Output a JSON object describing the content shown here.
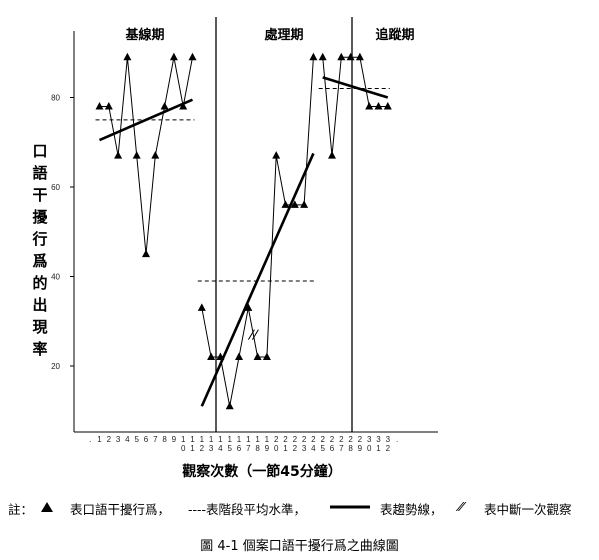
{
  "chart_data": {
    "type": "line",
    "title": "",
    "ylabel": "口語干擾行爲的出現率",
    "xlabel": "觀察次數（一節45分鐘）",
    "ylim": [
      0,
      100
    ],
    "y_ticks": [
      20,
      40,
      60,
      80
    ],
    "phases": [
      {
        "name": "基線期",
        "x": [
          1,
          2,
          3,
          4,
          5,
          6,
          7,
          8,
          9,
          10,
          11
        ],
        "tick_labels": [
          ".",
          "1",
          "2",
          "3",
          "4",
          "5",
          "6",
          "7",
          "8",
          "9",
          "1\n0",
          "1\n1"
        ],
        "y": [
          78,
          78,
          67,
          89,
          67,
          45,
          67,
          78,
          89,
          78,
          89
        ],
        "mean": 75,
        "trend": [
          70.5,
          79.5
        ]
      },
      {
        "name": "處理期",
        "x": [
          12,
          13,
          14,
          15,
          16,
          17,
          18,
          19,
          20,
          21,
          22,
          23,
          24
        ],
        "tick_labels": [
          "1\n2",
          "1\n3",
          "1\n4",
          "1\n5",
          "1\n6",
          "1\n7",
          "1\n8",
          "1\n9",
          "2\n0",
          "2\n1",
          "2\n2",
          "2\n3",
          "2\n4"
        ],
        "y": [
          33,
          22,
          22,
          11,
          22,
          33,
          22,
          22,
          67,
          56,
          56,
          56,
          89
        ],
        "mean": 39,
        "trend": [
          11,
          67.5
        ],
        "break_after_x": 17
      },
      {
        "name": "追蹤期",
        "x": [
          25,
          26,
          27,
          28,
          29,
          30,
          31,
          32
        ],
        "tick_labels": [
          "2\n5",
          "2\n6",
          "2\n7",
          "2\n8",
          "2\n9",
          "3\n0",
          "3\n1",
          "3\n2"
        ],
        "y": [
          89,
          67,
          89,
          89,
          89,
          78,
          78,
          78
        ],
        "mean": 82,
        "trend": [
          84.5,
          80
        ]
      }
    ]
  },
  "legend": {
    "prefix": "註：",
    "data_text": "表口語干擾行爲，",
    "mean_text": "----表階段平均水準，",
    "trend_text": "表趨勢線，",
    "break_glyph": "⁄⁄",
    "break_text": "表中斷一次觀察"
  },
  "caption": "圖 4-1 個案口語干擾行爲之曲線圖"
}
